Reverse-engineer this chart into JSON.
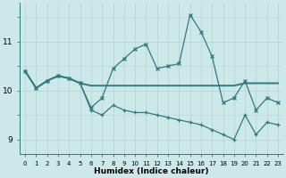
{
  "xlabel": "Humidex (Indice chaleur)",
  "x_values": [
    0,
    1,
    2,
    3,
    4,
    5,
    6,
    7,
    8,
    9,
    10,
    11,
    12,
    13,
    14,
    15,
    16,
    17,
    18,
    19,
    20,
    21,
    22,
    23
  ],
  "line1_y": [
    10.4,
    10.05,
    10.2,
    10.3,
    10.25,
    10.15,
    9.65,
    9.85,
    10.45,
    10.65,
    10.85,
    10.95,
    10.45,
    10.5,
    10.55,
    11.55,
    11.2,
    10.7,
    9.75,
    9.85,
    10.2,
    9.6,
    9.85,
    9.75
  ],
  "line2_y": [
    10.4,
    10.05,
    10.2,
    10.3,
    10.25,
    10.15,
    9.6,
    9.5,
    9.7,
    9.6,
    9.55,
    9.55,
    9.5,
    9.45,
    9.4,
    9.35,
    9.3,
    9.2,
    9.1,
    9.0,
    9.5,
    9.1,
    9.35,
    9.3
  ],
  "line3_y": [
    10.4,
    10.05,
    10.2,
    10.3,
    10.25,
    10.15,
    10.1,
    10.1,
    10.1,
    10.1,
    10.1,
    10.1,
    10.1,
    10.1,
    10.1,
    10.1,
    10.1,
    10.1,
    10.1,
    10.1,
    10.15,
    10.15,
    10.15,
    10.15
  ],
  "bg_color": "#cde8e8",
  "line_color": "#2e7b7b",
  "grid_major_color": "#b8d4d4",
  "grid_minor_color": "#d0e6e6",
  "ylim": [
    8.7,
    11.8
  ],
  "yticks": [
    9,
    10,
    11
  ],
  "xlim": [
    -0.5,
    23.5
  ]
}
